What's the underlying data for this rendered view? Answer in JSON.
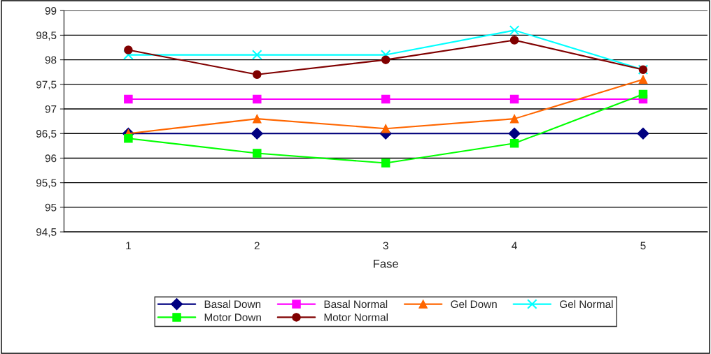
{
  "chart_data": {
    "type": "line",
    "xlabel": "Fase",
    "categories": [
      "1",
      "2",
      "3",
      "4",
      "5"
    ],
    "ylim": [
      94.5,
      99
    ],
    "yticks": [
      {
        "value": 94.5,
        "label": "94,5"
      },
      95,
      {
        "value": 95.5,
        "label": "95,5"
      },
      96,
      {
        "value": 96.5,
        "label": "96,5"
      },
      97,
      {
        "value": 97.5,
        "label": "97,5"
      },
      98,
      {
        "value": 98.5,
        "label": "98,5"
      },
      99
    ],
    "grid": "y",
    "legend": "bottom",
    "line_style": "solid",
    "series": [
      {
        "name": "Basal Down",
        "color": "#000080",
        "marker": "diamond",
        "values": [
          96.5,
          96.5,
          96.5,
          96.5,
          96.5
        ]
      },
      {
        "name": "Basal Normal",
        "color": "#ff00ff",
        "marker": "square",
        "values": [
          97.2,
          97.2,
          97.2,
          97.2,
          97.2
        ]
      },
      {
        "name": "Gel Down",
        "color": "#ff6600",
        "marker": "triangle",
        "values": [
          96.5,
          96.8,
          96.6,
          96.8,
          97.6
        ]
      },
      {
        "name": "Gel Normal",
        "color": "#00ffff",
        "marker": "cross",
        "values": [
          98.1,
          98.1,
          98.1,
          98.6,
          97.8
        ]
      },
      {
        "name": "Motor Down",
        "color": "#00ff00",
        "marker": "square",
        "values": [
          96.4,
          96.1,
          95.9,
          96.3,
          97.3
        ]
      },
      {
        "name": "Motor Normal",
        "color": "#800000",
        "marker": "circle",
        "values": [
          98.2,
          97.7,
          98.0,
          98.4,
          97.8
        ]
      }
    ]
  }
}
